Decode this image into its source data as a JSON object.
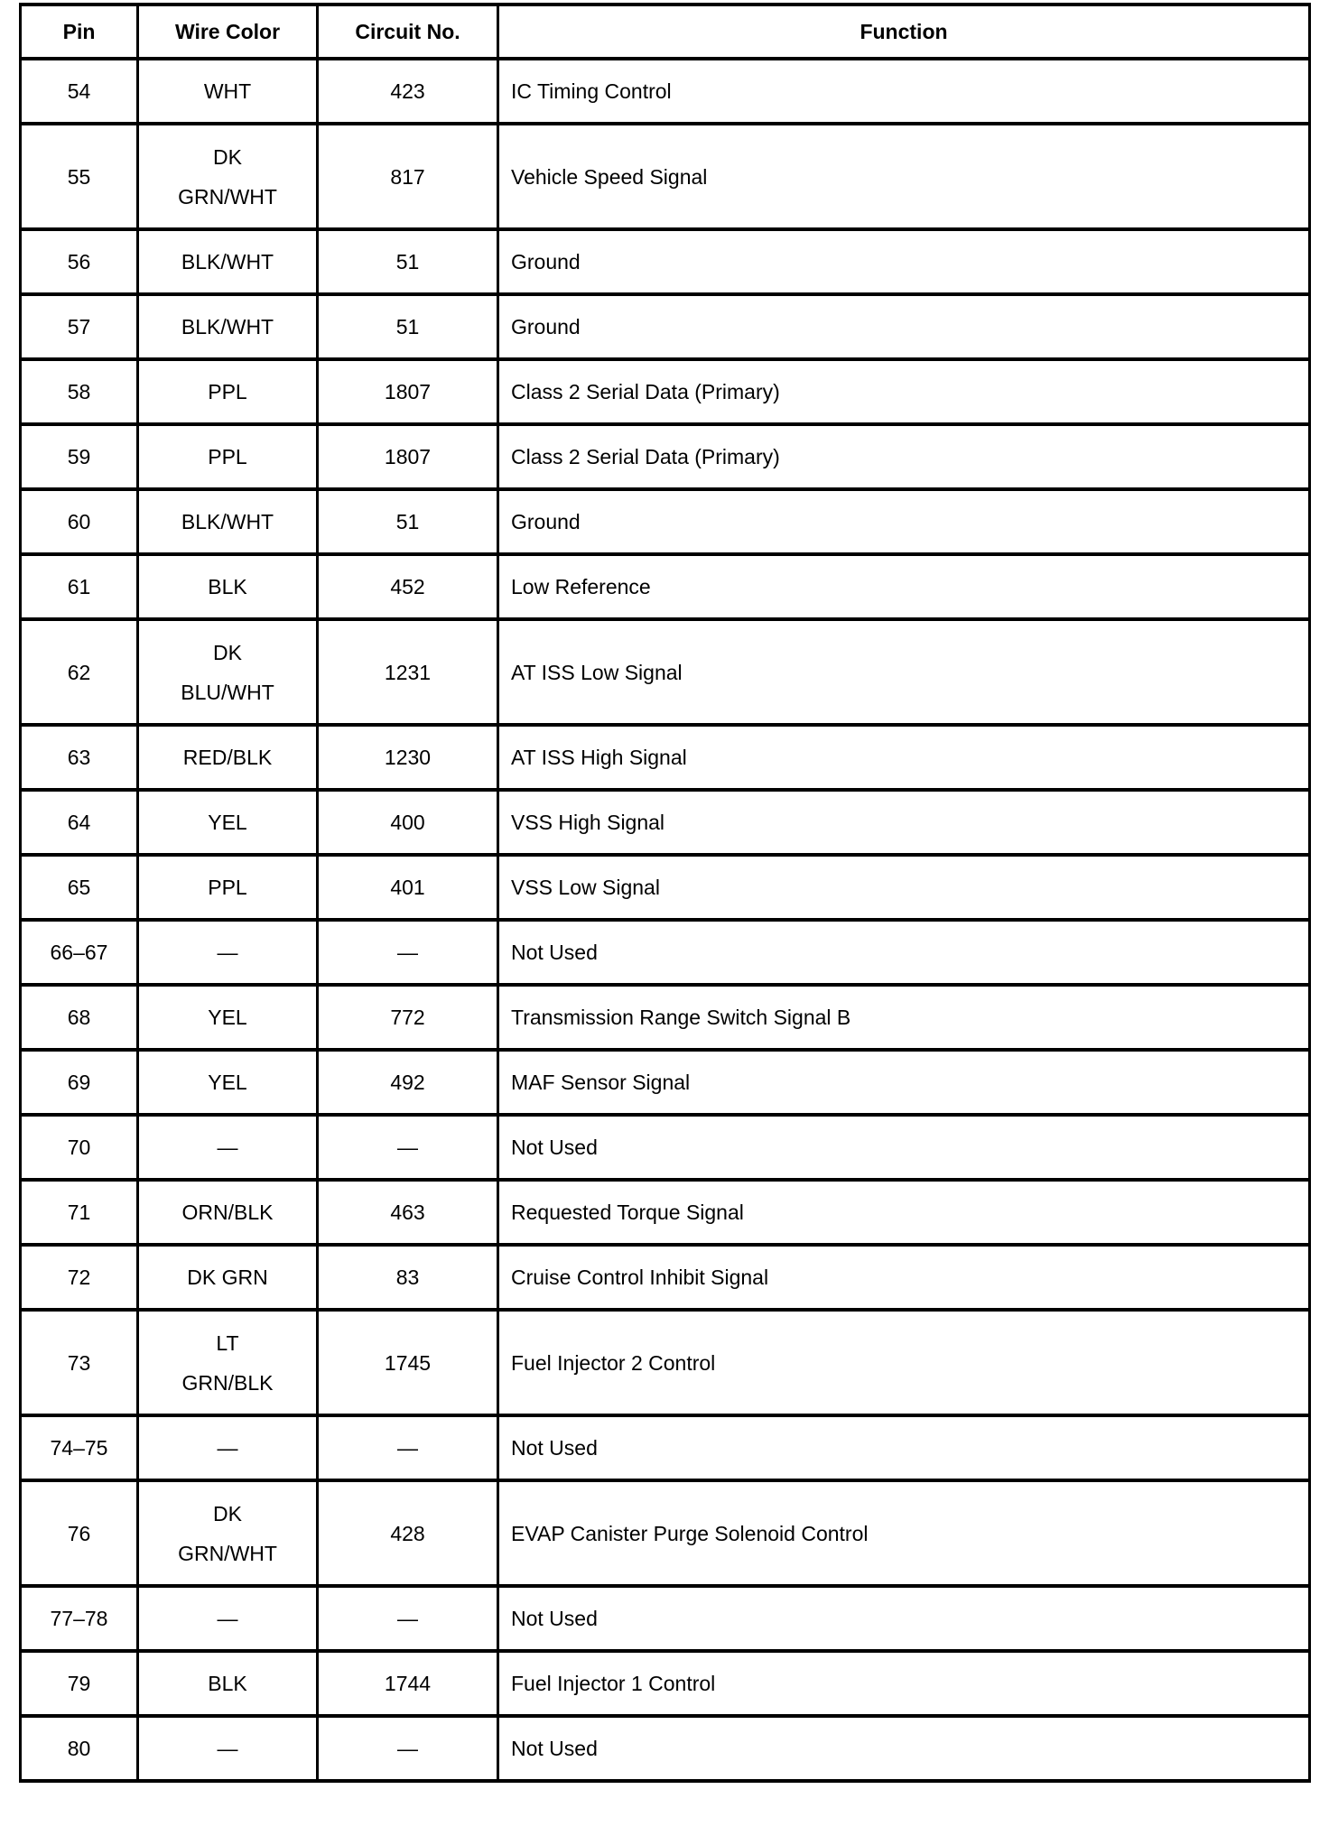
{
  "headers": [
    "Pin",
    "Wire Color",
    "Circuit No.",
    "Function"
  ],
  "rows": [
    {
      "pin": "54",
      "wire": "WHT",
      "circuit": "423",
      "function": "IC Timing Control"
    },
    {
      "pin": "55",
      "wire": "DK\nGRN/WHT",
      "circuit": "817",
      "function": "Vehicle Speed Signal"
    },
    {
      "pin": "56",
      "wire": "BLK/WHT",
      "circuit": "51",
      "function": "Ground"
    },
    {
      "pin": "57",
      "wire": "BLK/WHT",
      "circuit": "51",
      "function": "Ground"
    },
    {
      "pin": "58",
      "wire": "PPL",
      "circuit": "1807",
      "function": "Class 2 Serial Data (Primary)"
    },
    {
      "pin": "59",
      "wire": "PPL",
      "circuit": "1807",
      "function": "Class 2 Serial Data (Primary)"
    },
    {
      "pin": "60",
      "wire": "BLK/WHT",
      "circuit": "51",
      "function": "Ground"
    },
    {
      "pin": "61",
      "wire": "BLK",
      "circuit": "452",
      "function": "Low Reference"
    },
    {
      "pin": "62",
      "wire": "DK\nBLU/WHT",
      "circuit": "1231",
      "function": "AT ISS Low Signal"
    },
    {
      "pin": "63",
      "wire": "RED/BLK",
      "circuit": "1230",
      "function": "AT ISS High Signal"
    },
    {
      "pin": "64",
      "wire": "YEL",
      "circuit": "400",
      "function": "VSS High Signal"
    },
    {
      "pin": "65",
      "wire": "PPL",
      "circuit": "401",
      "function": "VSS Low Signal"
    },
    {
      "pin": "66–67",
      "wire": "—",
      "circuit": "—",
      "function": "Not Used"
    },
    {
      "pin": "68",
      "wire": "YEL",
      "circuit": "772",
      "function": "Transmission Range Switch Signal B"
    },
    {
      "pin": "69",
      "wire": "YEL",
      "circuit": "492",
      "function": "MAF Sensor Signal"
    },
    {
      "pin": "70",
      "wire": "—",
      "circuit": "—",
      "function": "Not Used"
    },
    {
      "pin": "71",
      "wire": "ORN/BLK",
      "circuit": "463",
      "function": "Requested Torque Signal"
    },
    {
      "pin": "72",
      "wire": "DK GRN",
      "circuit": "83",
      "function": "Cruise Control Inhibit Signal"
    },
    {
      "pin": "73",
      "wire": "LT\nGRN/BLK",
      "circuit": "1745",
      "function": "Fuel Injector 2 Control"
    },
    {
      "pin": "74–75",
      "wire": "—",
      "circuit": "—",
      "function": "Not Used"
    },
    {
      "pin": "76",
      "wire": "DK\nGRN/WHT",
      "circuit": "428",
      "function": "EVAP Canister Purge Solenoid Control"
    },
    {
      "pin": "77–78",
      "wire": "—",
      "circuit": "—",
      "function": "Not Used"
    },
    {
      "pin": "79",
      "wire": "BLK",
      "circuit": "1744",
      "function": "Fuel Injector 1 Control"
    },
    {
      "pin": "80",
      "wire": "—",
      "circuit": "—",
      "function": "Not Used"
    }
  ]
}
